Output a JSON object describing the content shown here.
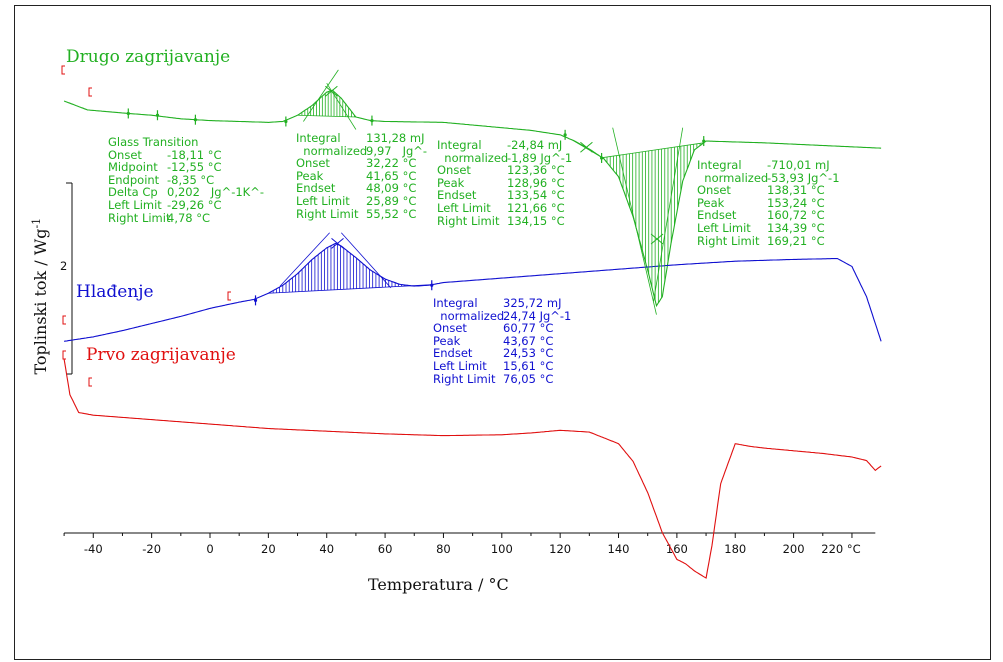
{
  "chart_data": {
    "type": "line",
    "xlabel": "Temperatura / °C",
    "ylabel": "Toplinski tok / Wg",
    "ylabel_superscript": "-1",
    "y_scale_label": "2",
    "xlim": [
      -50,
      230
    ],
    "x_ticks": [
      "-40",
      "-20",
      "0",
      "20",
      "40",
      "60",
      "80",
      "100",
      "120",
      "140",
      "160",
      "180",
      "200",
      "220 °C"
    ],
    "colors": {
      "heating2": "#22b022",
      "cooling": "#1010d0",
      "heating1": "#e01010"
    },
    "series": [
      {
        "name": "Drugo zagrijavanje",
        "x": [
          -50,
          -46,
          -42,
          -35,
          -28,
          -20,
          -15,
          -10,
          -5,
          0,
          10,
          20,
          25,
          30,
          35,
          40,
          42,
          45,
          50,
          55,
          60,
          80,
          100,
          110,
          120,
          125,
          130,
          135,
          140,
          145,
          150,
          153,
          155,
          158,
          162,
          166,
          170,
          190,
          210,
          230
        ],
        "y": [
          0.0,
          -0.5,
          -1.0,
          -1.2,
          -1.4,
          -1.6,
          -1.8,
          -2.0,
          -2.1,
          -2.2,
          -2.3,
          -2.4,
          -2.3,
          -1.6,
          -0.5,
          1.0,
          1.2,
          0.3,
          -1.8,
          -2.2,
          -2.3,
          -2.4,
          -3.0,
          -3.3,
          -3.8,
          -4.5,
          -5.4,
          -6.5,
          -8.5,
          -13.0,
          -19.0,
          -23.0,
          -22.0,
          -16.0,
          -9.0,
          -5.5,
          -4.5,
          -4.7,
          -5.0,
          -5.3
        ]
      },
      {
        "name": "Hlađenje",
        "x": [
          -50,
          -40,
          -30,
          -20,
          -10,
          0,
          10,
          15,
          20,
          25,
          30,
          35,
          40,
          43,
          45,
          50,
          55,
          60,
          65,
          70,
          75,
          80,
          100,
          120,
          140,
          160,
          180,
          200,
          215,
          220,
          225,
          230
        ],
        "y": [
          -27.0,
          -26.5,
          -25.8,
          -25.0,
          -24.2,
          -23.3,
          -22.6,
          -22.3,
          -21.6,
          -20.7,
          -19.4,
          -17.8,
          -16.5,
          -16.0,
          -16.3,
          -17.6,
          -19.0,
          -20.0,
          -20.6,
          -20.8,
          -20.7,
          -20.4,
          -19.9,
          -19.4,
          -18.9,
          -18.4,
          -18.0,
          -17.8,
          -17.7,
          -18.6,
          -22.0,
          -27.0
        ]
      },
      {
        "name": "Prvo zagrijavanje",
        "x": [
          -50,
          -48,
          -45,
          -40,
          -20,
          0,
          20,
          40,
          60,
          80,
          100,
          110,
          120,
          130,
          140,
          145,
          150,
          155,
          160,
          163,
          166,
          170,
          172,
          175,
          180,
          185,
          190,
          200,
          210,
          220,
          225,
          228,
          230
        ],
        "y": [
          -29.0,
          -33.0,
          -35.0,
          -35.3,
          -35.8,
          -36.3,
          -36.8,
          -37.1,
          -37.4,
          -37.6,
          -37.5,
          -37.3,
          -37.0,
          -37.2,
          -38.5,
          -40.5,
          -44.0,
          -48.5,
          -51.5,
          -52.0,
          -52.8,
          -53.6,
          -50.0,
          -43.0,
          -38.5,
          -38.8,
          -39.0,
          -39.3,
          -39.6,
          -40.0,
          -40.4,
          -41.5,
          -41.0
        ]
      }
    ]
  },
  "curve_labels": {
    "heating2": "Drugo zagrijavanje",
    "cooling": "Hlađenje",
    "heating1": "Prvo zagrijavanje"
  },
  "annotations": {
    "glass_transition": {
      "title": "Glass Transition",
      "rows": [
        [
          "Onset",
          "-18,11 °C"
        ],
        [
          "Midpoint",
          "-12,55 °C"
        ],
        [
          "Endpoint",
          "-8,35 °C"
        ],
        [
          "Delta Cp",
          "0,202   Jg^-1K^-"
        ],
        [
          "Left Limit",
          "-29,26 °C"
        ],
        [
          "Right Limit",
          "4,78 °C"
        ]
      ]
    },
    "peak_heating2_cold": {
      "rows": [
        [
          "Integral",
          "131,28 mJ"
        ],
        [
          "  normalized",
          "9,97   Jg^-"
        ],
        [
          "Onset",
          "32,22 °C"
        ],
        [
          "Peak",
          "41,65 °C"
        ],
        [
          "Endset",
          "48,09 °C"
        ],
        [
          "Left Limit",
          "25,89 °C"
        ],
        [
          "Right Limit",
          "55,52 °C"
        ]
      ]
    },
    "peak_heating2_small": {
      "rows": [
        [
          "Integral",
          "-24,84 mJ"
        ],
        [
          "  normalized",
          "-1,89 Jg^-1"
        ],
        [
          "Onset",
          "123,36 °C"
        ],
        [
          "Peak",
          "128,96 °C"
        ],
        [
          "Endset",
          "133,54 °C"
        ],
        [
          "Left Limit",
          "121,66 °C"
        ],
        [
          "Right Limit",
          "134,15 °C"
        ]
      ]
    },
    "peak_heating2_melt": {
      "rows": [
        [
          "Integral",
          "-710,01 mJ"
        ],
        [
          "  normalized",
          "-53,93 Jg^-1"
        ],
        [
          "Onset",
          "138,31 °C"
        ],
        [
          "Peak",
          "153,24 °C"
        ],
        [
          "Endset",
          "160,72 °C"
        ],
        [
          "Left Limit",
          "134,39 °C"
        ],
        [
          "Right Limit",
          "169,21 °C"
        ]
      ]
    },
    "peak_cooling": {
      "rows": [
        [
          "Integral",
          "325,72 mJ"
        ],
        [
          "  normalized",
          "24,74 Jg^-1"
        ],
        [
          "Onset",
          "60,77 °C"
        ],
        [
          "Peak",
          "43,67 °C"
        ],
        [
          "Endset",
          "24,53 °C"
        ],
        [
          "Left Limit",
          "15,61 °C"
        ],
        [
          "Right Limit",
          "76,05 °C"
        ]
      ]
    }
  }
}
